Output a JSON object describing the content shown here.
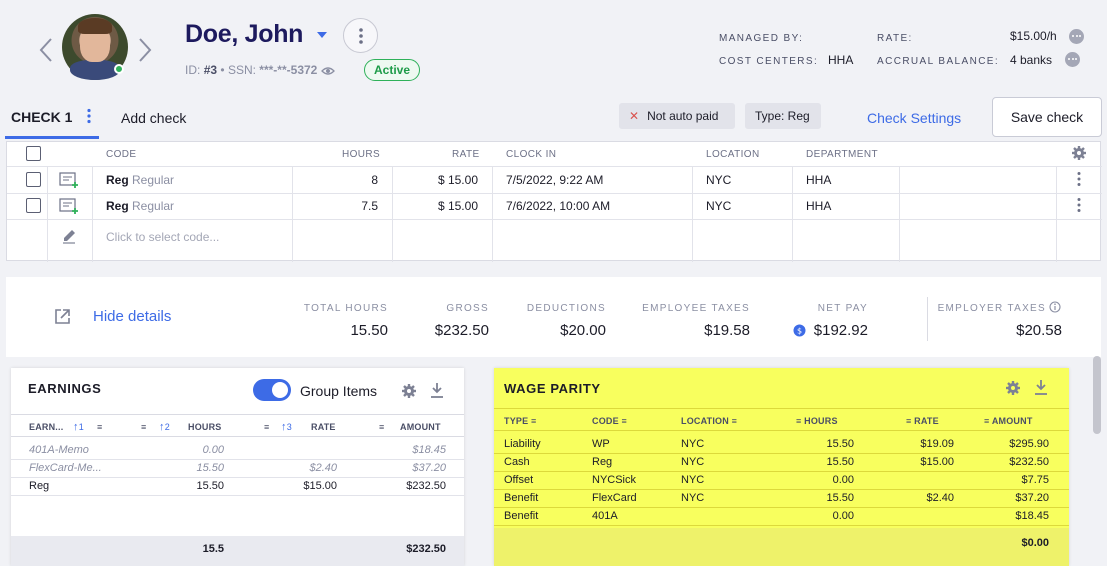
{
  "employee": {
    "name": "Doe, John",
    "id_label": "ID:",
    "id_value": "#3",
    "ssn_label": "SSN:",
    "ssn_value": "***-**-5372",
    "status": "Active"
  },
  "meta": {
    "managed_by_label": "MANAGED BY:",
    "cost_centers_label": "COST CENTERS:",
    "cost_centers_value": "HHA",
    "rate_label": "RATE:",
    "rate_value": "$15.00/h",
    "accrual_label": "ACCRUAL BALANCE:",
    "accrual_value": "4 banks"
  },
  "tabs": {
    "check1": "CHECK 1",
    "add_check": "Add check",
    "chip_not_auto": "Not auto paid",
    "chip_type": "Type: Reg",
    "check_settings": "Check Settings",
    "save_check": "Save check"
  },
  "check_table": {
    "headers": {
      "code": "CODE",
      "hours": "HOURS",
      "rate": "RATE",
      "clock_in": "CLOCK IN",
      "location": "LOCATION",
      "department": "DEPARTMENT"
    },
    "rows": [
      {
        "code": "Reg",
        "code_desc": "Regular",
        "hours": "8",
        "rate": "$ 15.00",
        "clock_in": "7/5/2022, 9:22 AM",
        "location": "NYC",
        "department": "HHA"
      },
      {
        "code": "Reg",
        "code_desc": "Regular",
        "hours": "7.5",
        "rate": "$ 15.00",
        "clock_in": "7/6/2022, 10:00 AM",
        "location": "NYC",
        "department": "HHA"
      }
    ],
    "new_row_placeholder": "Click to select code..."
  },
  "summary": {
    "hide_details": "Hide details",
    "total_hours_label": "TOTAL HOURS",
    "total_hours": "15.50",
    "gross_label": "GROSS",
    "gross": "$232.50",
    "deductions_label": "DEDUCTIONS",
    "deductions": "$20.00",
    "employee_taxes_label": "EMPLOYEE TAXES",
    "employee_taxes": "$19.58",
    "net_pay_label": "NET PAY",
    "net_pay": "$192.92",
    "employer_taxes_label": "EMPLOYER TAXES",
    "employer_taxes": "$20.58"
  },
  "earnings": {
    "title": "EARNINGS",
    "group_items_label": "Group Items",
    "group_items_on": true,
    "headers": {
      "earn": "EARN...",
      "sort1": "1",
      "sort2": "2",
      "hours": "HOURS",
      "sort3": "3",
      "rate": "RATE",
      "amount": "AMOUNT"
    },
    "rows": [
      {
        "name": "401A-Memo",
        "hours": "0.00",
        "rate": "",
        "amount": "$18.45",
        "muted": true
      },
      {
        "name": "FlexCard-Me...",
        "hours": "15.50",
        "rate": "$2.40",
        "amount": "$37.20",
        "muted": true
      },
      {
        "name": "Reg",
        "hours": "15.50",
        "rate": "$15.00",
        "amount": "$232.50",
        "muted": false
      }
    ],
    "total_hours": "15.5",
    "total_amount": "$232.50"
  },
  "wage_parity": {
    "title": "WAGE PARITY",
    "headers": {
      "type": "TYPE",
      "code": "CODE",
      "location": "LOCATION",
      "hours": "HOURS",
      "rate": "RATE",
      "amount": "AMOUNT"
    },
    "rows": [
      {
        "type": "Liability",
        "code": "WP",
        "location": "NYC",
        "hours": "15.50",
        "rate": "$19.09",
        "amount": "$295.90"
      },
      {
        "type": "Cash",
        "code": "Reg",
        "location": "NYC",
        "hours": "15.50",
        "rate": "$15.00",
        "amount": "$232.50"
      },
      {
        "type": "Offset",
        "code": "NYCSick",
        "location": "NYC",
        "hours": "0.00",
        "rate": "",
        "amount": "$7.75"
      },
      {
        "type": "Benefit",
        "code": "FlexCard",
        "location": "NYC",
        "hours": "15.50",
        "rate": "$2.40",
        "amount": "$37.20"
      },
      {
        "type": "Benefit",
        "code": "401A",
        "location": "",
        "hours": "0.00",
        "rate": "",
        "amount": "$18.45"
      }
    ],
    "total_amount": "$0.00"
  },
  "colors": {
    "accent": "#3d6be6",
    "title_navy": "#1d1a5e",
    "active_green": "#2fb15a",
    "highlight_yellow": "#f8ff5e"
  }
}
